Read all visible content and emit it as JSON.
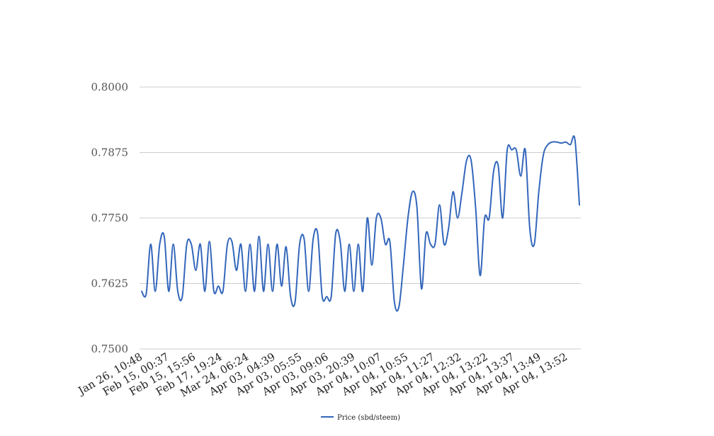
{
  "chart_data": {
    "type": "line",
    "title": "",
    "xlabel": "",
    "ylabel": "",
    "ylim": [
      0.75,
      0.8
    ],
    "y_ticks": [
      "0.7500",
      "0.7625",
      "0.7750",
      "0.7875",
      "0.8000"
    ],
    "y_tick_values": [
      0.75,
      0.7625,
      0.775,
      0.7875,
      0.8
    ],
    "x_tick_labels": [
      "Jan 26, 10:48",
      "Feb 15, 00:37",
      "Feb 15, 15:56",
      "Feb 17, 19:24",
      "Mar 24, 06:24",
      "Apr 03, 04:39",
      "Apr 03, 05:55",
      "Apr 03, 09:06",
      "Apr 03, 20:39",
      "Apr 04, 10:07",
      "Apr 04, 10:55",
      "Apr 04, 11:27",
      "Apr 04, 12:32",
      "Apr 04, 13:22",
      "Apr 04, 13:37",
      "Apr 04, 13:49",
      "Apr 04, 13:52"
    ],
    "grid": true,
    "legend_position": "bottom",
    "accent_color": "#3366bb",
    "series": [
      {
        "name": "Price (sbd/steem)",
        "color": "#3366bb",
        "values": [
          0.761,
          0.7605,
          0.77,
          0.761,
          0.77,
          0.7715,
          0.761,
          0.77,
          0.761,
          0.76,
          0.77,
          0.77,
          0.765,
          0.77,
          0.761,
          0.7705,
          0.761,
          0.762,
          0.761,
          0.77,
          0.7705,
          0.765,
          0.77,
          0.761,
          0.77,
          0.761,
          0.7715,
          0.761,
          0.77,
          0.761,
          0.77,
          0.762,
          0.7695,
          0.76,
          0.759,
          0.77,
          0.771,
          0.761,
          0.771,
          0.772,
          0.76,
          0.76,
          0.76,
          0.772,
          0.7705,
          0.761,
          0.77,
          0.761,
          0.77,
          0.761,
          0.775,
          0.766,
          0.775,
          0.775,
          0.77,
          0.7705,
          0.759,
          0.758,
          0.766,
          0.775,
          0.78,
          0.777,
          0.7615,
          0.772,
          0.77,
          0.77,
          0.7775,
          0.77,
          0.773,
          0.78,
          0.775,
          0.78,
          0.786,
          0.786,
          0.777,
          0.764,
          0.775,
          0.775,
          0.784,
          0.785,
          0.775,
          0.788,
          0.788,
          0.788,
          0.783,
          0.788,
          0.773,
          0.77,
          0.78,
          0.787,
          0.789,
          0.7895,
          0.7895,
          0.7893,
          0.7895,
          0.789,
          0.79,
          0.7775
        ]
      }
    ]
  }
}
